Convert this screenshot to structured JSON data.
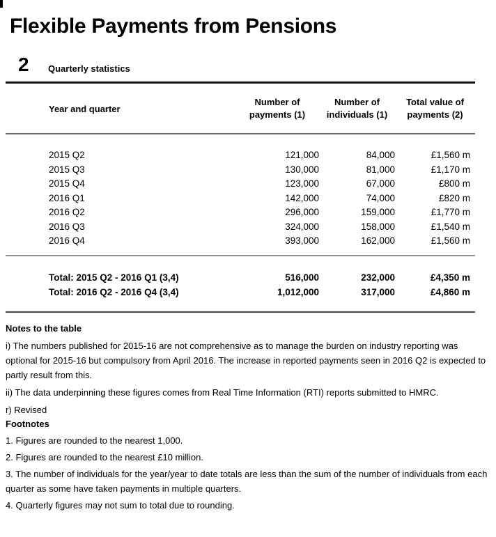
{
  "page": {
    "title": "Flexible Payments from Pensions",
    "section_number": "2",
    "section_title": "Quarterly statistics"
  },
  "colors": {
    "text": "#000000",
    "section_rule": "#111111",
    "table_rule_gray": "#6b6b6b"
  },
  "table": {
    "columns": [
      {
        "label": "Year and quarter"
      },
      {
        "line1": "Number of",
        "line2": "payments (1)"
      },
      {
        "line1": "Number of",
        "line2": "individuals (1)"
      },
      {
        "line1": "Total value of",
        "line2": "payments (2)"
      }
    ],
    "rows": [
      {
        "quarter": "2015 Q2",
        "payments": "121,000",
        "individuals": "84,000",
        "value": "£1,560 m"
      },
      {
        "quarter": "2015 Q3",
        "payments": "130,000",
        "individuals": "81,000",
        "value": "£1,170 m"
      },
      {
        "quarter": "2015 Q4",
        "payments": "123,000",
        "individuals": "67,000",
        "value": "£800 m"
      },
      {
        "quarter": "2016 Q1",
        "payments": "142,000",
        "individuals": "74,000",
        "value": "£820 m"
      },
      {
        "quarter": "2016 Q2",
        "payments": "296,000",
        "individuals": "159,000",
        "value": "£1,770 m"
      },
      {
        "quarter": "2016 Q3",
        "payments": "324,000",
        "individuals": "158,000",
        "value": "£1,540 m"
      },
      {
        "quarter": "2016 Q4",
        "payments": "393,000",
        "individuals": "162,000",
        "value": "£1,560 m"
      }
    ],
    "totals": [
      {
        "label": "Total: 2015 Q2 - 2016 Q1 (3,4)",
        "payments": "516,000",
        "individuals": "232,000",
        "value": "£4,350 m"
      },
      {
        "label": "Total: 2016 Q2 - 2016 Q4 (3,4)",
        "payments": "1,012,000",
        "individuals": "317,000",
        "value": "£4,860 m"
      }
    ]
  },
  "notes": {
    "heading": "Notes to the table",
    "items": [
      "i) The numbers published for 2015-16 are not comprehensive as to manage the burden on industry reporting was optional for 2015-16 but compulsory from April 2016. The increase in reported payments seen in 2016 Q2 is expected to partly result from this.",
      "ii) The data underpinning these figures comes from Real Time Information (RTI) reports submitted to HMRC.",
      "r) Revised"
    ]
  },
  "footnotes": {
    "heading": "Footnotes",
    "items": [
      "1. Figures are rounded to the nearest 1,000.",
      "2. Figures are rounded to the nearest £10 million.",
      "3. The number of individuals for the year/year to date totals are less than the sum of the number of individuals from each quarter as some have taken payments in multiple quarters.",
      "4. Quarterly figures may not sum to total due to rounding."
    ]
  }
}
